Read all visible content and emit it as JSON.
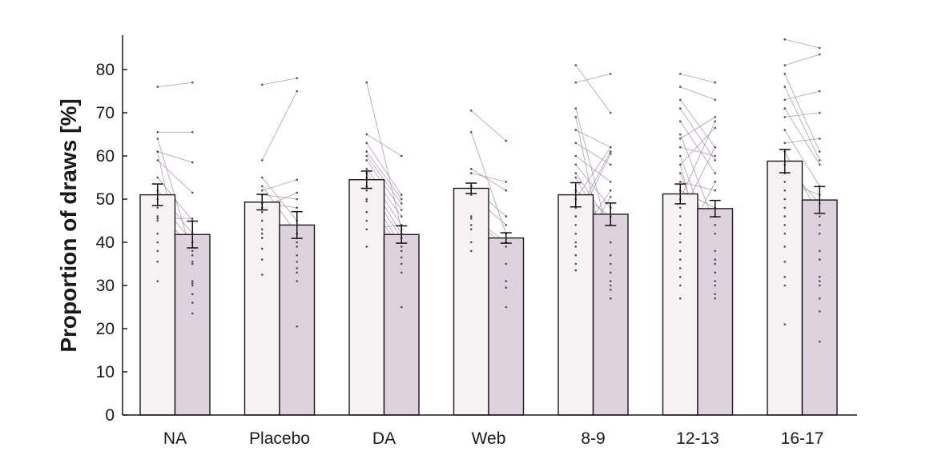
{
  "chart_data": {
    "type": "bar",
    "title": "",
    "xlabel": "",
    "ylabel": "Proportion of draws [%]",
    "ylim": [
      0,
      88
    ],
    "yticks": [
      "0",
      "10",
      "20",
      "30",
      "40",
      "50",
      "60",
      "70",
      "80"
    ],
    "grid": false,
    "legend": "none",
    "categories": [
      "NA",
      "Placebo",
      "DA",
      "Web",
      "8-9",
      "12-13",
      "16-17"
    ],
    "series": [
      {
        "values": [
          51,
          49.3,
          54.5,
          52.5,
          51,
          51.2,
          58.8
        ],
        "sem": [
          2.5,
          1.8,
          2,
          1.2,
          2.8,
          2.3,
          2.7
        ]
      },
      {
        "values": [
          41.8,
          44,
          41.8,
          41,
          46.5,
          47.8,
          49.8
        ],
        "sem": [
          3.1,
          3.1,
          2,
          1.2,
          2.6,
          1.9,
          3.1
        ]
      }
    ],
    "colors": {
      "first": "#f6f1f2",
      "second": "#ddd2de",
      "edge": "#1a1a1a",
      "paired_line": "#a796ab",
      "dot": "#5a4a5e"
    },
    "paired_points": [
      [
        [
          76,
          77
        ],
        [
          65.5,
          65.5
        ],
        [
          64,
          37
        ],
        [
          61,
          58.5
        ],
        [
          59,
          51.5
        ],
        [
          55,
          45
        ],
        [
          52,
          42
        ],
        [
          50,
          40
        ],
        [
          48,
          38
        ],
        [
          46,
          35.5
        ],
        [
          45.5,
          45.5
        ],
        [
          45,
          31
        ],
        [
          42,
          35
        ],
        [
          40,
          30
        ],
        [
          38,
          28
        ],
        [
          35.5,
          26
        ],
        [
          31,
          30.5
        ],
        [
          61,
          23.5
        ]
      ],
      [
        [
          76.5,
          78
        ],
        [
          59,
          75
        ],
        [
          55,
          45
        ],
        [
          53,
          42
        ],
        [
          52,
          54.5
        ],
        [
          51,
          50
        ],
        [
          49,
          48
        ],
        [
          48,
          51.5
        ],
        [
          47,
          40
        ],
        [
          45,
          39
        ],
        [
          42,
          37
        ],
        [
          41,
          33
        ],
        [
          38.5,
          35.5
        ],
        [
          36,
          31
        ],
        [
          32.5,
          34
        ],
        [
          43,
          20.5
        ]
      ],
      [
        [
          77,
          43
        ],
        [
          65,
          60
        ],
        [
          63,
          51
        ],
        [
          61,
          50
        ],
        [
          60,
          49
        ],
        [
          59,
          47.5
        ],
        [
          57,
          46
        ],
        [
          56,
          44
        ],
        [
          55,
          42
        ],
        [
          53,
          41
        ],
        [
          52,
          39
        ],
        [
          50,
          38
        ],
        [
          49.5,
          36.5
        ],
        [
          47,
          35
        ],
        [
          45,
          33
        ],
        [
          43,
          44
        ],
        [
          39,
          25
        ]
      ],
      [
        [
          70.5,
          63.5
        ],
        [
          65.5,
          42
        ],
        [
          57,
          52
        ],
        [
          56,
          54
        ],
        [
          53,
          46
        ],
        [
          51,
          44
        ],
        [
          46,
          40
        ],
        [
          45.5,
          39
        ],
        [
          43,
          35
        ],
        [
          44,
          31
        ],
        [
          38,
          29.5
        ],
        [
          40,
          25
        ]
      ],
      [
        [
          81,
          70
        ],
        [
          77,
          79
        ],
        [
          71,
          40
        ],
        [
          69,
          30
        ],
        [
          66,
          62
        ],
        [
          63,
          58
        ],
        [
          60,
          54
        ],
        [
          58,
          48
        ],
        [
          56,
          44
        ],
        [
          55,
          40
        ],
        [
          52,
          46
        ],
        [
          50,
          62
        ],
        [
          48,
          37
        ],
        [
          46,
          35
        ],
        [
          44,
          60.5
        ],
        [
          42,
          33
        ],
        [
          40,
          52
        ],
        [
          37,
          50.5
        ],
        [
          35,
          31
        ],
        [
          33.5,
          29
        ],
        [
          39,
          27
        ],
        [
          46,
          61
        ]
      ],
      [
        [
          79,
          77
        ],
        [
          76,
          73
        ],
        [
          73,
          62
        ],
        [
          71,
          59
        ],
        [
          68,
          56
        ],
        [
          65,
          44
        ],
        [
          62,
          60
        ],
        [
          60,
          38
        ],
        [
          58,
          66.5
        ],
        [
          56,
          35
        ],
        [
          54,
          52
        ],
        [
          52,
          48
        ],
        [
          50,
          68
        ],
        [
          48,
          33
        ],
        [
          46,
          62
        ],
        [
          44,
          44
        ],
        [
          42,
          36
        ],
        [
          40,
          30
        ],
        [
          38,
          54
        ],
        [
          36,
          42
        ],
        [
          34,
          46
        ],
        [
          32,
          31
        ],
        [
          30,
          33
        ],
        [
          27,
          27
        ],
        [
          64,
          69
        ],
        [
          58,
          28
        ]
      ],
      [
        [
          87,
          85
        ],
        [
          81,
          83.5
        ],
        [
          79,
          61
        ],
        [
          76,
          59
        ],
        [
          73,
          75
        ],
        [
          71,
          58
        ],
        [
          69,
          70
        ],
        [
          66,
          53
        ],
        [
          63,
          64
        ],
        [
          61,
          46
        ],
        [
          58,
          49
        ],
        [
          56,
          44
        ],
        [
          54,
          51
        ],
        [
          52,
          42
        ],
        [
          50,
          38
        ],
        [
          48,
          36
        ],
        [
          46,
          32
        ],
        [
          44,
          30
        ],
        [
          42,
          36
        ],
        [
          39,
          27
        ],
        [
          35.5,
          44
        ],
        [
          21,
          31
        ],
        [
          32,
          24
        ],
        [
          30,
          17
        ]
      ]
    ]
  }
}
